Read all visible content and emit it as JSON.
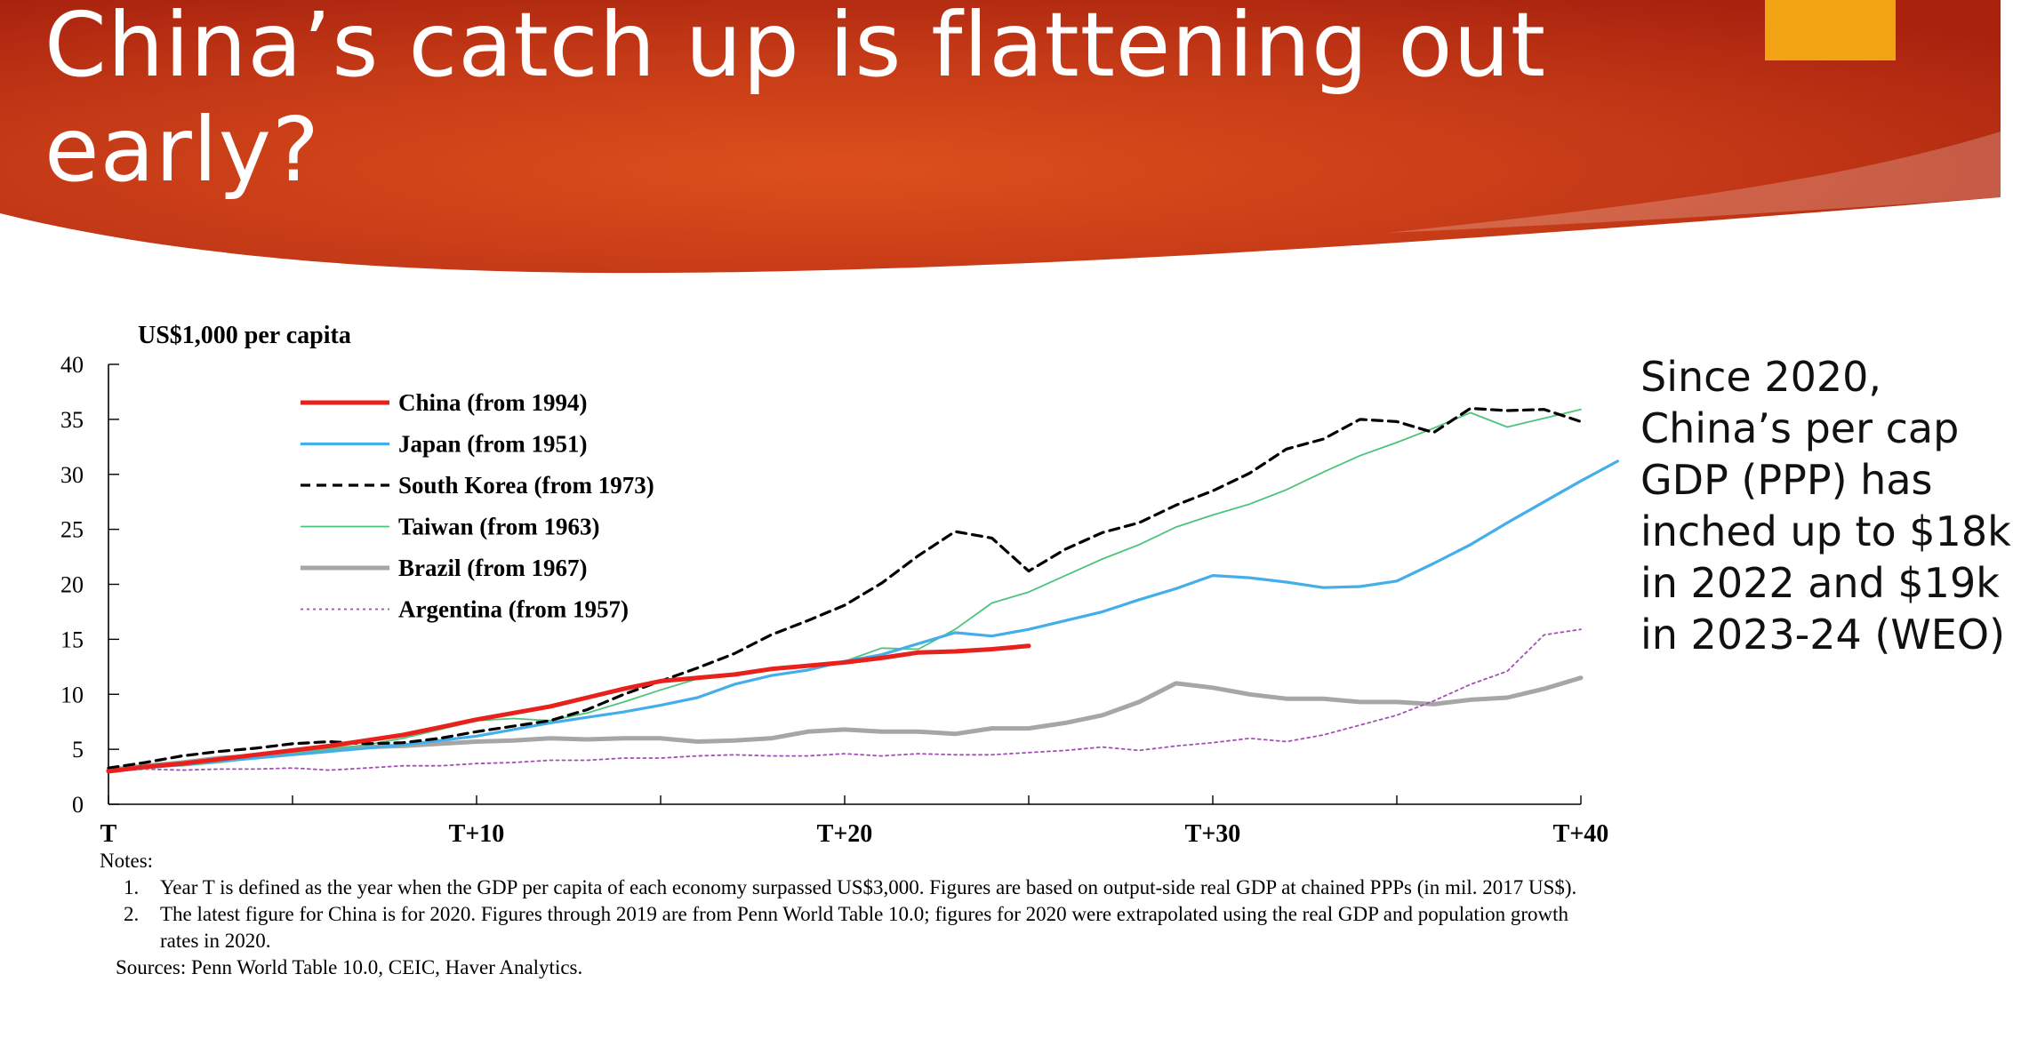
{
  "slide": {
    "title": "China’s catch up is flattening out early?",
    "side_text": "Since 2020, China’s per cap GDP (PPP) has inched up to $18k in 2022 and $19k in 2023-24 (WEO)",
    "colors": {
      "header_dark": "#a8220e",
      "header_bright": "#dc4f1c",
      "accent": "#f2a313"
    }
  },
  "notes": {
    "heading": "Notes:",
    "items": [
      "Year T is defined as the year when the GDP per capita of each economy surpassed US$3,000. Figures are based on output-side real GDP at chained PPPs (in mil. 2017 US$).",
      "The latest figure for China is for 2020. Figures through 2019 are from Penn World Table 10.0; figures for 2020 were extrapolated using the real GDP and population growth rates in 2020."
    ],
    "sources": "Sources: Penn World Table 10.0, CEIC, Haver Analytics."
  },
  "chart_data": {
    "type": "line",
    "ylabel": "US$1,000 per capita",
    "ylim": [
      0,
      40
    ],
    "y_ticks": [
      "0",
      "5",
      "10",
      "15",
      "20",
      "25",
      "30",
      "35",
      "40"
    ],
    "xlim": [
      0,
      40
    ],
    "x_tick_labels": [
      {
        "x": 0,
        "label": "T"
      },
      {
        "x": 10,
        "label": "T+10"
      },
      {
        "x": 20,
        "label": "T+20"
      },
      {
        "x": 30,
        "label": "T+30"
      },
      {
        "x": 40,
        "label": "T+40"
      }
    ],
    "legend_position": "top-left",
    "grid": false,
    "series": [
      {
        "name": "China (from 1994)",
        "color": "#e8211c",
        "dash": "solid",
        "width": "thick",
        "values": [
          3.0,
          3.4,
          3.7,
          4.1,
          4.5,
          4.9,
          5.3,
          5.8,
          6.3,
          7.0,
          7.7,
          8.3,
          8.9,
          9.7,
          10.5,
          11.2,
          11.5,
          11.8,
          12.3,
          12.6,
          12.9,
          13.3,
          13.8,
          13.9,
          14.1,
          14.4
        ]
      },
      {
        "name": "Japan (from 1951)",
        "color": "#43aee9",
        "dash": "solid",
        "width": "medium",
        "values": [
          3.0,
          3.3,
          3.6,
          3.9,
          4.2,
          4.5,
          4.8,
          5.1,
          5.4,
          5.8,
          6.2,
          6.8,
          7.4,
          7.9,
          8.4,
          9.0,
          9.7,
          10.9,
          11.7,
          12.2,
          13.0,
          13.6,
          14.6,
          15.6,
          15.3,
          15.9,
          16.7,
          17.5,
          18.6,
          19.6,
          20.8,
          20.6,
          20.2,
          19.7,
          19.8,
          20.3,
          21.9,
          23.6,
          25.6,
          27.5,
          29.4,
          31.2
        ]
      },
      {
        "name": "South Korea (from 1973)",
        "color": "#000000",
        "dash": "dashed",
        "width": "medium",
        "values": [
          3.3,
          3.8,
          4.4,
          4.8,
          5.1,
          5.5,
          5.7,
          5.5,
          5.6,
          6.0,
          6.6,
          7.1,
          7.6,
          8.6,
          10.0,
          11.2,
          12.4,
          13.7,
          15.4,
          16.7,
          18.1,
          20.1,
          22.6,
          24.8,
          24.2,
          21.2,
          23.2,
          24.7,
          25.6,
          27.2,
          28.5,
          30.1,
          32.3,
          33.2,
          35.0,
          34.8,
          33.8,
          36.0,
          35.8,
          35.9,
          34.8
        ]
      },
      {
        "name": "Taiwan (from 1963)",
        "color": "#4dc47b",
        "dash": "solid",
        "width": "thin",
        "values": [
          3.1,
          3.4,
          3.5,
          3.8,
          4.2,
          4.6,
          5.0,
          5.4,
          6.0,
          6.8,
          7.6,
          7.8,
          7.6,
          8.3,
          9.3,
          10.4,
          11.4,
          11.9,
          12.3,
          12.6,
          13.0,
          14.2,
          14.1,
          15.9,
          18.3,
          19.3,
          20.8,
          22.3,
          23.6,
          25.2,
          26.3,
          27.3,
          28.6,
          30.2,
          31.7,
          32.9,
          34.2,
          35.6,
          34.3,
          35.1,
          35.9
        ]
      },
      {
        "name": "Brazil (from 1967)",
        "color": "#a6a6a6",
        "dash": "solid",
        "width": "thick",
        "values": [
          3.1,
          3.5,
          3.8,
          4.2,
          4.4,
          4.8,
          5.0,
          5.2,
          5.3,
          5.5,
          5.7,
          5.8,
          6.0,
          5.9,
          6.0,
          6.0,
          5.7,
          5.8,
          6.0,
          6.6,
          6.8,
          6.6,
          6.6,
          6.4,
          6.9,
          6.9,
          7.4,
          8.1,
          9.3,
          11.0,
          10.6,
          10.0,
          9.6,
          9.6,
          9.3,
          9.3,
          9.1,
          9.5,
          9.7,
          10.5,
          11.5
        ]
      },
      {
        "name": "Argentina (from 1957)",
        "color": "#a24fb3",
        "dash": "dotted",
        "width": "thin",
        "values": [
          3.0,
          3.2,
          3.1,
          3.2,
          3.2,
          3.3,
          3.1,
          3.3,
          3.5,
          3.5,
          3.7,
          3.8,
          4.0,
          4.0,
          4.2,
          4.2,
          4.4,
          4.5,
          4.4,
          4.4,
          4.6,
          4.4,
          4.6,
          4.5,
          4.5,
          4.7,
          4.9,
          5.2,
          4.9,
          5.3,
          5.6,
          6.0,
          5.7,
          6.3,
          7.2,
          8.1,
          9.4,
          10.9,
          12.1,
          15.4,
          15.9
        ]
      }
    ]
  }
}
